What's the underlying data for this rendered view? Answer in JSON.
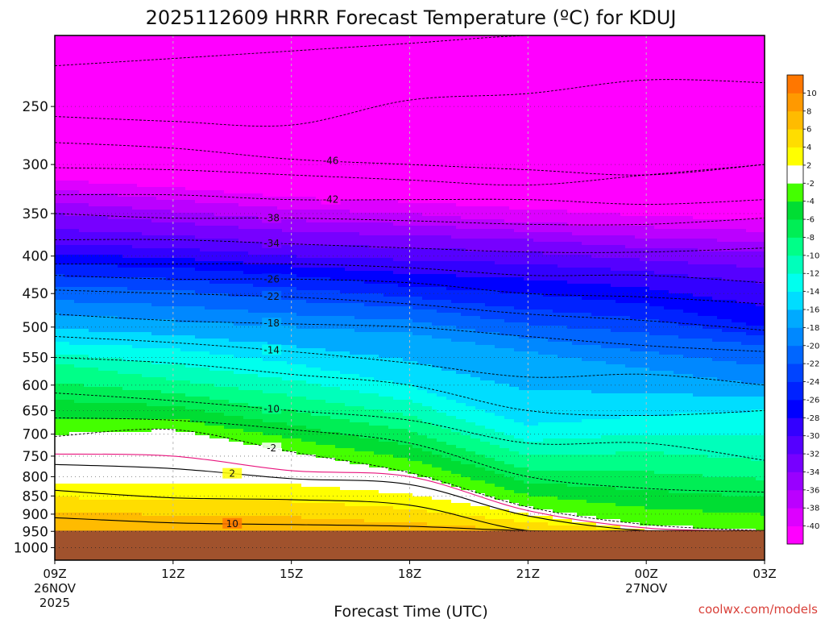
{
  "chart_data": {
    "type": "heatmap",
    "title": "2025112609 HRRR Forecast Temperature (ºC) for KDUJ",
    "xlabel": "Forecast Time (UTC)",
    "ylabel": "",
    "x_ticks": [
      {
        "hour": 0,
        "label": "09Z",
        "sub1": "26NOV",
        "sub2": "2025"
      },
      {
        "hour": 3,
        "label": "12Z",
        "sub1": "",
        "sub2": ""
      },
      {
        "hour": 6,
        "label": "15Z",
        "sub1": "",
        "sub2": ""
      },
      {
        "hour": 9,
        "label": "18Z",
        "sub1": "",
        "sub2": ""
      },
      {
        "hour": 12,
        "label": "21Z",
        "sub1": "",
        "sub2": ""
      },
      {
        "hour": 15,
        "label": "00Z",
        "sub1": "27NOV",
        "sub2": ""
      },
      {
        "hour": 18,
        "label": "03Z",
        "sub1": "",
        "sub2": ""
      }
    ],
    "xlim_hours": [
      0,
      18
    ],
    "y_ticks": [
      250,
      300,
      350,
      400,
      450,
      500,
      550,
      600,
      650,
      700,
      750,
      800,
      850,
      900,
      950,
      1000
    ],
    "ylim_hpa": [
      200,
      1040
    ],
    "y_scale": "log-pressure",
    "colorbar": {
      "levels": [
        -40,
        -38,
        -36,
        -34,
        -32,
        -30,
        -28,
        -26,
        -24,
        -22,
        -20,
        -18,
        -16,
        -14,
        -12,
        -10,
        -8,
        -6,
        -4,
        -2,
        2,
        4,
        6,
        8,
        10
      ],
      "colors": [
        "#ff00ff",
        "#dd00ff",
        "#bb00ff",
        "#9900ff",
        "#7700ff",
        "#5500ff",
        "#3300ff",
        "#0000ff",
        "#0022ff",
        "#0044ff",
        "#0066ff",
        "#0088ff",
        "#00aaff",
        "#00ddff",
        "#00ffee",
        "#00ffbb",
        "#00ff88",
        "#00ee55",
        "#00dd33",
        "#44ff00",
        "#ffffff",
        "#ffff00",
        "#ffdd00",
        "#ffbb00",
        "#ff9900",
        "#ff7700"
      ]
    },
    "surface_color": "#a0522d",
    "surface_pressure_hpa": 948,
    "hours": [
      0,
      3,
      6,
      9,
      12,
      15,
      18
    ],
    "isotherm_profiles": [
      {
        "temp": 6,
        "pressure": [
          895,
          902,
          908,
          925,
          948,
          948,
          948
        ]
      },
      {
        "temp": 2,
        "pressure": [
          815,
          815,
          820,
          845,
          900,
          948,
          948
        ]
      },
      {
        "temp": -2,
        "pressure": [
          700,
          690,
          740,
          790,
          880,
          930,
          948
        ]
      },
      {
        "temp": -10,
        "pressure": [
          560,
          590,
          620,
          660,
          750,
          740,
          760
        ]
      },
      {
        "temp": -14,
        "pressure": [
          525,
          535,
          560,
          600,
          680,
          660,
          650
        ]
      },
      {
        "temp": -18,
        "pressure": [
          480,
          490,
          500,
          510,
          540,
          570,
          600
        ]
      },
      {
        "temp": -22,
        "pressure": [
          440,
          445,
          460,
          470,
          495,
          510,
          530
        ]
      },
      {
        "temp": -26,
        "pressure": [
          410,
          415,
          425,
          440,
          450,
          465,
          500
        ]
      },
      {
        "temp": -30,
        "pressure": [
          385,
          390,
          400,
          405,
          410,
          420,
          435
        ]
      },
      {
        "temp": -34,
        "pressure": [
          350,
          360,
          370,
          375,
          380,
          390,
          395
        ]
      },
      {
        "temp": -38,
        "pressure": [
          325,
          335,
          345,
          350,
          360,
          365,
          370
        ]
      },
      {
        "temp": -42,
        "pressure": [
          305,
          310,
          320,
          325,
          330,
          340,
          345
        ]
      },
      {
        "temp": -46,
        "pressure": [
          280,
          290,
          300,
          305,
          310,
          315,
          320
        ]
      }
    ],
    "contours": [
      {
        "value": -50,
        "label": "",
        "style": "dashed",
        "color": "#000000",
        "hours": [
          0,
          3,
          6,
          9,
          12,
          15,
          18
        ],
        "pressure": [
          220,
          215,
          210,
          205,
          200,
          200,
          200
        ]
      },
      {
        "value": -48,
        "label": "",
        "style": "dashed",
        "color": "#000000",
        "hours": [
          0,
          3,
          6,
          9,
          12,
          15,
          18
        ],
        "pressure": [
          258,
          262,
          265,
          245,
          240,
          230,
          232
        ]
      },
      {
        "value": -46,
        "label": "-46",
        "style": "dashed",
        "color": "#000000",
        "hours": [
          0,
          3,
          6,
          9,
          12,
          15,
          18
        ],
        "pressure": [
          280,
          285,
          295,
          300,
          305,
          310,
          300
        ]
      },
      {
        "value": -44,
        "label": "",
        "style": "dashed",
        "color": "#000000",
        "hours": [
          0,
          3,
          6,
          9,
          12,
          15,
          18
        ],
        "pressure": [
          303,
          305,
          310,
          315,
          320,
          310,
          300
        ]
      },
      {
        "value": -42,
        "label": "-42",
        "style": "dashed",
        "color": "#000000",
        "hours": [
          0,
          3,
          6,
          9,
          12,
          15,
          18
        ],
        "pressure": [
          330,
          330,
          335,
          335,
          335,
          340,
          335
        ]
      },
      {
        "value": -38,
        "label": "-38",
        "style": "dashed",
        "color": "#000000",
        "hours": [
          0,
          3,
          6,
          9,
          12,
          15,
          18
        ],
        "pressure": [
          350,
          355,
          355,
          358,
          362,
          362,
          355
        ]
      },
      {
        "value": -34,
        "label": "-34",
        "style": "dashed",
        "color": "#000000",
        "hours": [
          0,
          3,
          6,
          9,
          12,
          15,
          18
        ],
        "pressure": [
          380,
          380,
          385,
          390,
          395,
          395,
          390
        ]
      },
      {
        "value": -30,
        "label": "",
        "style": "dashed",
        "color": "#000000",
        "hours": [
          0,
          3,
          6,
          9,
          12,
          15,
          18
        ],
        "pressure": [
          410,
          410,
          410,
          415,
          425,
          425,
          435
        ]
      },
      {
        "value": -26,
        "label": "-26",
        "style": "dashed",
        "color": "#000000",
        "hours": [
          0,
          3,
          6,
          9,
          12,
          15,
          18
        ],
        "pressure": [
          425,
          430,
          430,
          435,
          450,
          455,
          465
        ]
      },
      {
        "value": -22,
        "label": "-22",
        "style": "dashed",
        "color": "#000000",
        "hours": [
          0,
          3,
          6,
          9,
          12,
          15,
          18
        ],
        "pressure": [
          445,
          450,
          455,
          465,
          480,
          490,
          505
        ]
      },
      {
        "value": -18,
        "label": "-18",
        "style": "dashed",
        "color": "#000000",
        "hours": [
          0,
          3,
          6,
          9,
          12,
          15,
          18
        ],
        "pressure": [
          480,
          490,
          495,
          500,
          515,
          530,
          540
        ]
      },
      {
        "value": -14,
        "label": "-14",
        "style": "dashed",
        "color": "#000000",
        "hours": [
          0,
          3,
          6,
          9,
          12,
          15,
          18
        ],
        "pressure": [
          515,
          525,
          540,
          560,
          585,
          580,
          600
        ]
      },
      {
        "value": -12,
        "label": "",
        "style": "dashed",
        "color": "#000000",
        "hours": [
          0,
          3,
          6,
          9,
          12,
          15,
          18
        ],
        "pressure": [
          550,
          560,
          580,
          600,
          650,
          660,
          650
        ]
      },
      {
        "value": -10,
        "label": "-10",
        "style": "dashed",
        "color": "#000000",
        "hours": [
          0,
          3,
          6,
          9,
          12,
          15,
          18
        ],
        "pressure": [
          615,
          630,
          650,
          670,
          720,
          720,
          760
        ]
      },
      {
        "value": -6,
        "label": "",
        "style": "dashed",
        "color": "#000000",
        "hours": [
          0,
          3,
          6,
          9,
          12,
          15,
          18
        ],
        "pressure": [
          665,
          670,
          690,
          720,
          800,
          830,
          840
        ]
      },
      {
        "value": -2,
        "label": "-2",
        "style": "dashed",
        "color": "#000000",
        "hours": [
          0,
          3,
          6,
          9,
          12,
          15,
          18
        ],
        "pressure": [
          705,
          690,
          740,
          790,
          880,
          930,
          948
        ]
      },
      {
        "value": 0,
        "label": "",
        "style": "solid",
        "color": "#e8157d",
        "hours": [
          0,
          3,
          6,
          9,
          12,
          15,
          18
        ],
        "pressure": [
          745,
          750,
          785,
          800,
          890,
          940,
          948
        ]
      },
      {
        "value": 2,
        "label": "2",
        "style": "solid",
        "color": "#000000",
        "hours": [
          0,
          3,
          6,
          9,
          12,
          15,
          18
        ],
        "pressure": [
          770,
          780,
          805,
          820,
          905,
          948,
          948
        ]
      },
      {
        "value": 6,
        "label": "",
        "style": "solid",
        "color": "#000000",
        "hours": [
          0,
          3,
          6,
          9,
          12,
          15,
          18
        ],
        "pressure": [
          835,
          855,
          860,
          875,
          948,
          948,
          948
        ]
      },
      {
        "value": 10,
        "label": "10",
        "style": "solid",
        "color": "#000000",
        "hours": [
          0,
          3,
          6,
          9,
          12,
          15,
          18
        ],
        "pressure": [
          910,
          925,
          930,
          935,
          948,
          948,
          948
        ]
      }
    ],
    "credit": "coolwx.com/models"
  }
}
